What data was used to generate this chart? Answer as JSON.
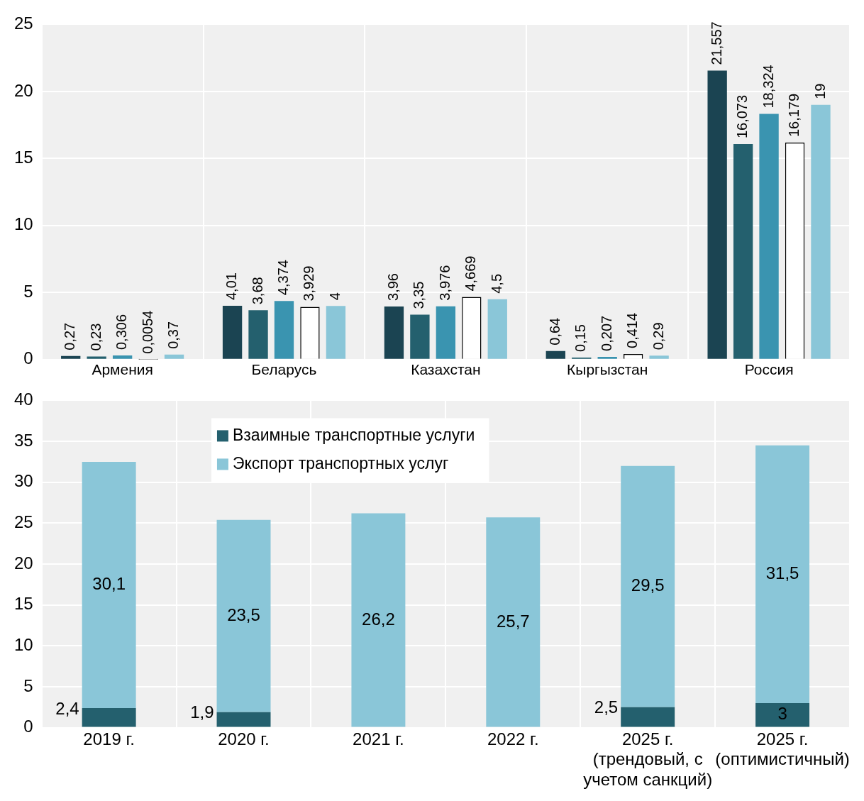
{
  "chart_data": [
    {
      "type": "bar",
      "categories": [
        "Армения",
        "Беларусь",
        "Казахстан",
        "Кыргызстан",
        "Россия"
      ],
      "series": [
        {
          "color": "#1b4452",
          "values": [
            0.27,
            4.01,
            3.96,
            0.64,
            21.557
          ],
          "value_labels": [
            "0,27",
            "4,01",
            "3,96",
            "0,64",
            "21,557"
          ]
        },
        {
          "color": "#24606e",
          "values": [
            0.23,
            3.68,
            3.35,
            0.15,
            16.073
          ],
          "value_labels": [
            "0,23",
            "3,68",
            "3,35",
            "0,15",
            "16,073"
          ]
        },
        {
          "color": "#3a94b0",
          "values": [
            0.306,
            4.374,
            3.976,
            0.207,
            18.324
          ],
          "value_labels": [
            "0,306",
            "4,374",
            "3,976",
            "0,207",
            "18,324"
          ]
        },
        {
          "color": "#ffffff",
          "values": [
            0.0054,
            3.929,
            4.669,
            0.414,
            16.179
          ],
          "value_labels": [
            "0,0054",
            "3,929",
            "4,669",
            "0,414",
            "16,179"
          ]
        },
        {
          "color": "#8ac6d8",
          "values": [
            0.37,
            4,
            4.5,
            0.29,
            19
          ],
          "value_labels": [
            "0,37",
            "4",
            "4,5",
            "0,29",
            "19"
          ]
        }
      ],
      "ylim": [
        0,
        25
      ],
      "yticks": [
        0,
        5,
        10,
        15,
        20,
        25
      ],
      "grid": true
    },
    {
      "type": "bar",
      "stacked": true,
      "categories": [
        "2019 г.",
        "2020 г.",
        "2021 г.",
        "2022 г.",
        "2025 г. (трендовый, с учетом санкций)",
        "2025 г. (оптимистичный)"
      ],
      "series": [
        {
          "name": "Взаимные транспортные услуги",
          "color": "#24606e",
          "values": [
            2.4,
            1.9,
            null,
            null,
            2.5,
            3
          ],
          "value_labels": [
            "2,4",
            "1,9",
            null,
            null,
            "2,5",
            "3"
          ]
        },
        {
          "name": "Экспорт транспортных услуг",
          "color": "#8ac6d8",
          "values": [
            30.1,
            23.5,
            26.2,
            25.7,
            29.5,
            31.5
          ],
          "value_labels": [
            "30,1",
            "23,5",
            "26,2",
            "25,7",
            "29,5",
            "31,5"
          ]
        }
      ],
      "ylim": [
        0,
        40
      ],
      "yticks": [
        0,
        5,
        10,
        15,
        20,
        25,
        30,
        35,
        40
      ],
      "grid": true,
      "legend": "top"
    }
  ]
}
